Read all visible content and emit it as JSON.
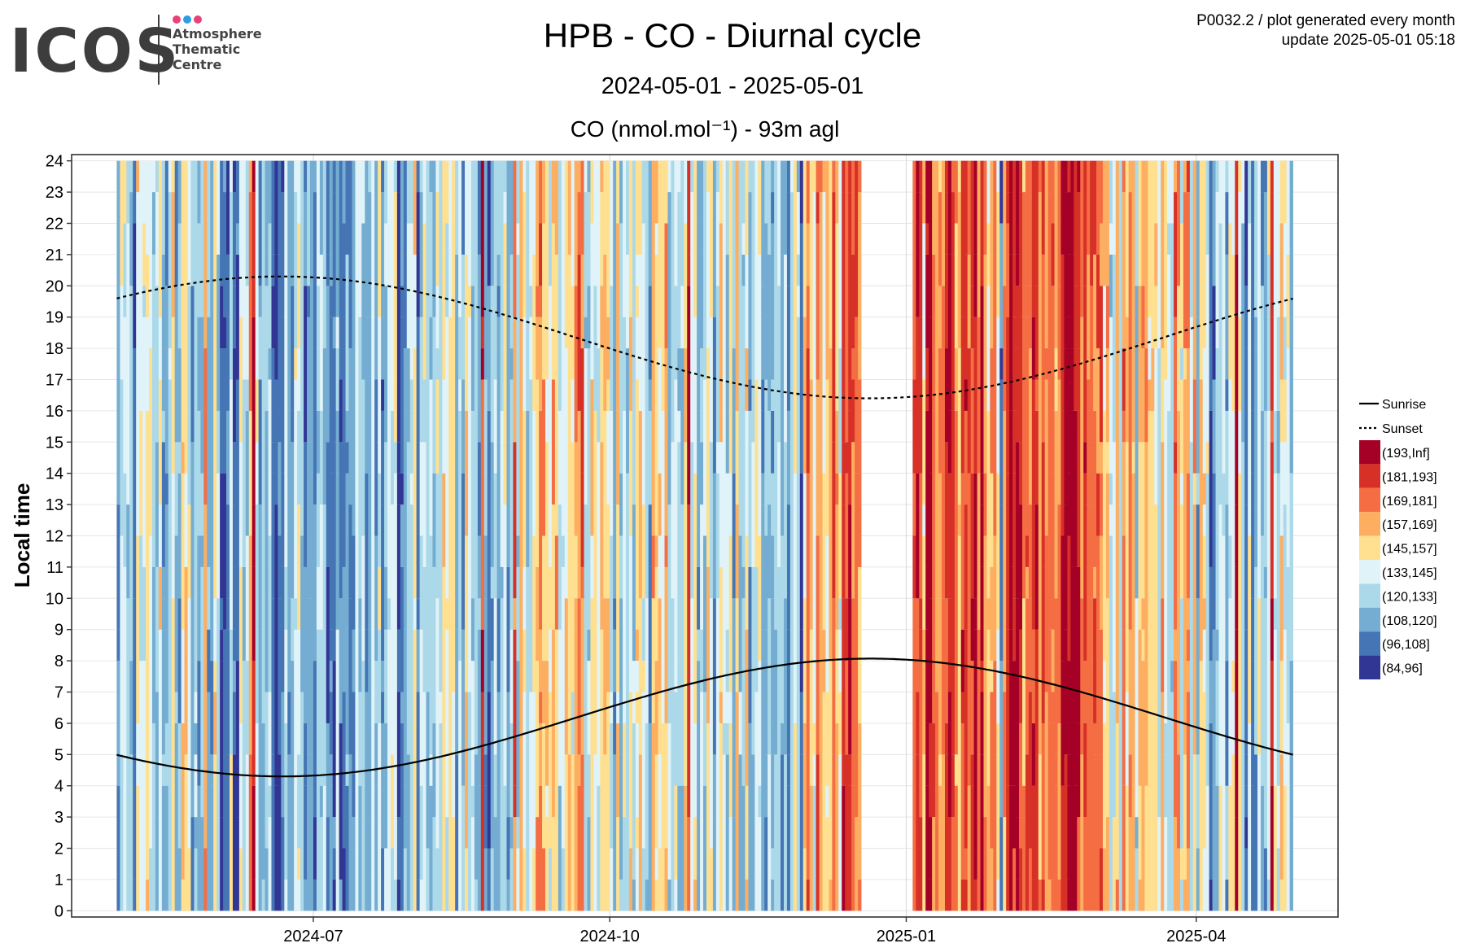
{
  "logo": {
    "word": "ICOS",
    "sub_lines": [
      "Atmosphere",
      "Thematic",
      "Centre"
    ],
    "dot_colors": [
      "#e8417a",
      "#2b9ee6",
      "#e8417a"
    ]
  },
  "header": {
    "title": "HPB - CO - Diurnal cycle",
    "subtitle": "2024-05-01 - 2025-05-01",
    "meta_line1": "P0032.2 / plot generated every month",
    "meta_line2": "update  2025-05-01 05:18"
  },
  "chart_data": {
    "type": "heatmap",
    "panel_title": "CO (nmol.mol⁻¹) - 93m agl",
    "ylabel": "Local time",
    "xlabel": "",
    "x_start": "2024-05-01",
    "x_end": "2025-05-01",
    "xticks": [
      {
        "date": "2024-07-01",
        "label": "2024-07"
      },
      {
        "date": "2024-10-01",
        "label": "2024-10"
      },
      {
        "date": "2025-01-01",
        "label": "2025-01"
      },
      {
        "date": "2025-04-01",
        "label": "2025-04"
      }
    ],
    "ylim": [
      0,
      24
    ],
    "yticks": [
      0,
      1,
      2,
      3,
      4,
      5,
      6,
      7,
      8,
      9,
      10,
      11,
      12,
      13,
      14,
      15,
      16,
      17,
      18,
      19,
      20,
      21,
      22,
      23,
      24
    ],
    "grid": true,
    "legend_position": "right",
    "data_gap": [
      "2024-12-18",
      "2025-01-03"
    ],
    "bins": [
      {
        "label": "(193,Inf]",
        "color": "#a50026"
      },
      {
        "label": "(181,193]",
        "color": "#d73027"
      },
      {
        "label": "(169,181]",
        "color": "#f46d43"
      },
      {
        "label": "(157,169]",
        "color": "#fdae61"
      },
      {
        "label": "(145,157]",
        "color": "#fee090"
      },
      {
        "label": "(133,145]",
        "color": "#e0f3f8"
      },
      {
        "label": "(120,133]",
        "color": "#abd9e9"
      },
      {
        "label": "(108,120]",
        "color": "#74add1"
      },
      {
        "label": "(96,108]",
        "color": "#4575b4"
      },
      {
        "label": "(84,96]",
        "color": "#313695"
      }
    ],
    "monthly_level": [
      {
        "month": "2024-05",
        "bin": 6
      },
      {
        "month": "2024-06",
        "bin": 7
      },
      {
        "month": "2024-07",
        "bin": 7
      },
      {
        "month": "2024-08",
        "bin": 6
      },
      {
        "month": "2024-09",
        "bin": 4
      },
      {
        "month": "2024-10",
        "bin": 5
      },
      {
        "month": "2024-11",
        "bin": 6
      },
      {
        "month": "2024-12",
        "bin": 3
      },
      {
        "month": "2025-01",
        "bin": 2
      },
      {
        "month": "2025-02",
        "bin": 1
      },
      {
        "month": "2025-03",
        "bin": 4
      },
      {
        "month": "2025-04",
        "bin": 6
      }
    ],
    "lines": [
      {
        "name": "Sunrise",
        "style": "solid",
        "min_hour": 4.3,
        "min_date": "2024-06-21",
        "max_hour": 8.07,
        "max_date": "2024-12-21"
      },
      {
        "name": "Sunset",
        "style": "dashed",
        "min_hour": 16.4,
        "min_date": "2024-12-21",
        "max_hour": 20.3,
        "max_date": "2024-06-21"
      }
    ]
  }
}
